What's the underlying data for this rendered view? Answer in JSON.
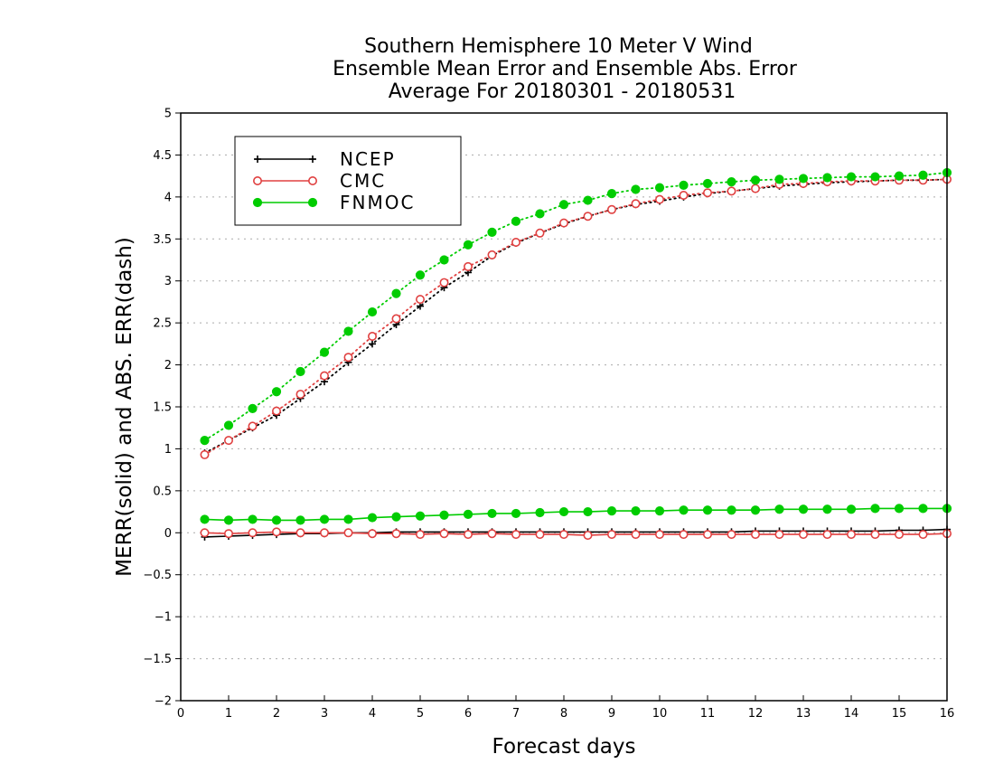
{
  "chart_data": {
    "type": "line",
    "title": [
      "Southern Hemisphere 10 Meter V Wind",
      "Ensemble Mean Error and Ensemble Abs. Error",
      "Average For 20180301 - 20180531"
    ],
    "xlabel": "Forecast days",
    "ylabel": "MERR(solid) and ABS. ERR(dash)",
    "xlim": [
      0,
      16
    ],
    "ylim": [
      -2,
      5
    ],
    "xticks": [
      "0",
      "1",
      "2",
      "3",
      "4",
      "5",
      "6",
      "7",
      "8",
      "9",
      "10",
      "11",
      "12",
      "13",
      "14",
      "15",
      "16"
    ],
    "yticks": [
      "5",
      "4.5",
      "4",
      "3.5",
      "3",
      "2.5",
      "2",
      "1.5",
      "1",
      "0.5",
      "0",
      "−0.5",
      "−1",
      "−1.5",
      "−2"
    ],
    "grid": "horizontal dotted",
    "legend_position": "top-left",
    "x": [
      0.5,
      1,
      1.5,
      2,
      2.5,
      3,
      3.5,
      4,
      4.5,
      5,
      5.5,
      6,
      6.5,
      7,
      7.5,
      8,
      8.5,
      9,
      9.5,
      10,
      10.5,
      11,
      11.5,
      12,
      12.5,
      13,
      13.5,
      14,
      14.5,
      15,
      15.5,
      16
    ],
    "series": [
      {
        "name": "NCEP",
        "color": "#000000",
        "marker": "plus",
        "mean_error": [
          -0.05,
          -0.04,
          -0.03,
          -0.02,
          -0.01,
          -0.01,
          0,
          0,
          0.01,
          0.01,
          0.01,
          0.01,
          0.01,
          0.01,
          0.01,
          0.01,
          0.01,
          0.01,
          0.01,
          0.01,
          0.01,
          0.01,
          0.01,
          0.02,
          0.02,
          0.02,
          0.02,
          0.02,
          0.02,
          0.03,
          0.03,
          0.04
        ],
        "abs_error": [
          0.95,
          1.1,
          1.25,
          1.4,
          1.6,
          1.8,
          2.03,
          2.25,
          2.48,
          2.7,
          2.92,
          3.1,
          3.3,
          3.45,
          3.57,
          3.68,
          3.77,
          3.85,
          3.91,
          3.95,
          4.0,
          4.04,
          4.07,
          4.1,
          4.13,
          4.15,
          4.17,
          4.18,
          4.19,
          4.2,
          4.2,
          4.21
        ]
      },
      {
        "name": "CMC",
        "color": "#e04040",
        "marker": "open-circle",
        "mean_error": [
          0,
          -0.01,
          0,
          0.01,
          0,
          0,
          0,
          -0.01,
          -0.01,
          -0.02,
          -0.01,
          -0.02,
          -0.01,
          -0.02,
          -0.02,
          -0.02,
          -0.03,
          -0.02,
          -0.02,
          -0.02,
          -0.02,
          -0.02,
          -0.02,
          -0.02,
          -0.02,
          -0.02,
          -0.02,
          -0.02,
          -0.02,
          -0.02,
          -0.02,
          -0.01
        ],
        "abs_error": [
          0.93,
          1.1,
          1.27,
          1.45,
          1.65,
          1.87,
          2.09,
          2.34,
          2.55,
          2.78,
          2.98,
          3.17,
          3.31,
          3.46,
          3.57,
          3.69,
          3.77,
          3.85,
          3.92,
          3.97,
          4.02,
          4.05,
          4.07,
          4.1,
          4.15,
          4.16,
          4.18,
          4.19,
          4.19,
          4.2,
          4.2,
          4.21
        ]
      },
      {
        "name": "FNMOC",
        "color": "#00cc00",
        "marker": "filled-circle",
        "mean_error": [
          0.16,
          0.15,
          0.16,
          0.15,
          0.15,
          0.16,
          0.16,
          0.18,
          0.19,
          0.2,
          0.21,
          0.22,
          0.23,
          0.23,
          0.24,
          0.25,
          0.25,
          0.26,
          0.26,
          0.26,
          0.27,
          0.27,
          0.27,
          0.27,
          0.28,
          0.28,
          0.28,
          0.28,
          0.29,
          0.29,
          0.29,
          0.29
        ],
        "abs_error": [
          1.1,
          1.28,
          1.48,
          1.68,
          1.92,
          2.15,
          2.4,
          2.63,
          2.85,
          3.07,
          3.25,
          3.43,
          3.58,
          3.71,
          3.8,
          3.91,
          3.96,
          4.04,
          4.09,
          4.11,
          4.14,
          4.16,
          4.18,
          4.2,
          4.21,
          4.22,
          4.23,
          4.24,
          4.24,
          4.25,
          4.26,
          4.29
        ]
      }
    ]
  }
}
